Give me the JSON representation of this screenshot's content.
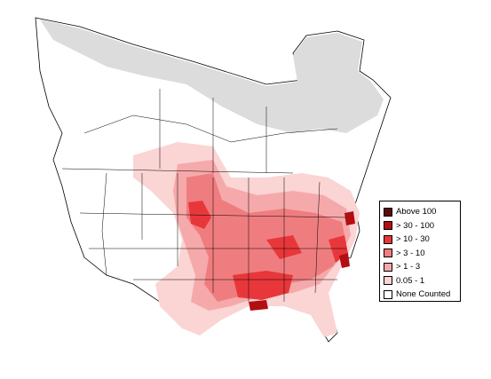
{
  "legend": {
    "items": [
      {
        "label": "Above 100",
        "color": "#5c0a0a"
      },
      {
        "label": "> 30 - 100",
        "color": "#b20f12"
      },
      {
        "label": "> 10 - 30",
        "color": "#e8373a"
      },
      {
        "label": "> 3 - 10",
        "color": "#ef7d7f"
      },
      {
        "label": "> 1 - 3",
        "color": "#f6a9aa"
      },
      {
        "label": "0.05 - 1",
        "color": "#fbd4d4"
      },
      {
        "label": "None Counted",
        "color": "#ffffff"
      }
    ]
  },
  "colors": {
    "not_surveyed": "#dcdcdc",
    "boundary": "#000000",
    "background": "#ffffff"
  }
}
